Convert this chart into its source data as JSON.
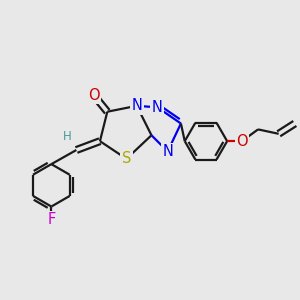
{
  "background_color": "#e8e8e8",
  "figsize": [
    3.0,
    3.0
  ],
  "dpi": 100,
  "xlim": [
    0,
    10
  ],
  "ylim": [
    0,
    10
  ]
}
